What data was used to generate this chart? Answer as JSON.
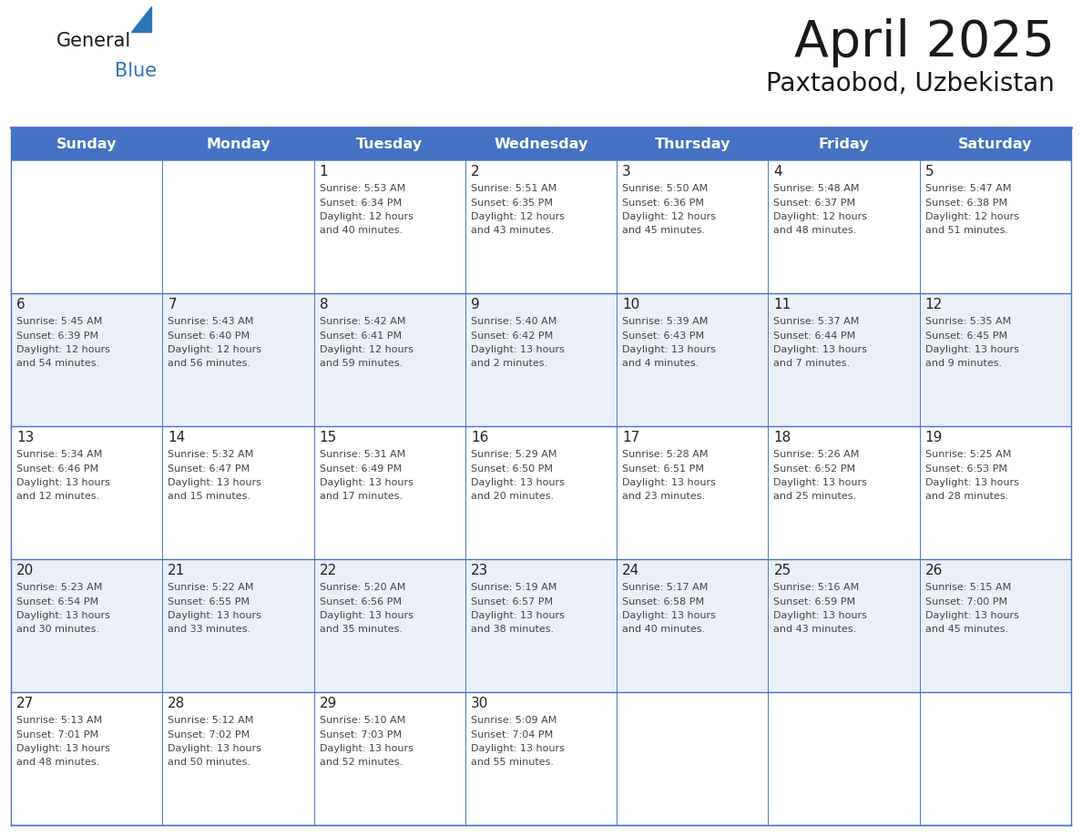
{
  "title": "April 2025",
  "subtitle": "Paxtaobod, Uzbekistan",
  "header_bg_color": "#4472C4",
  "header_text_color": "#FFFFFF",
  "border_color": "#4472C4",
  "title_color": "#1a1a1a",
  "subtitle_color": "#1a1a1a",
  "day_number_color": "#222222",
  "cell_text_color": "#444444",
  "days_of_week": [
    "Sunday",
    "Monday",
    "Tuesday",
    "Wednesday",
    "Thursday",
    "Friday",
    "Saturday"
  ],
  "row_bg_colors": [
    "#FFFFFF",
    "#EBF0F8"
  ],
  "calendar_data": [
    [
      {
        "day": "",
        "sunrise": "",
        "sunset": "",
        "daylight": ""
      },
      {
        "day": "",
        "sunrise": "",
        "sunset": "",
        "daylight": ""
      },
      {
        "day": "1",
        "sunrise": "5:53 AM",
        "sunset": "6:34 PM",
        "daylight_h": "12 hours",
        "daylight_m": "and 40 minutes."
      },
      {
        "day": "2",
        "sunrise": "5:51 AM",
        "sunset": "6:35 PM",
        "daylight_h": "12 hours",
        "daylight_m": "and 43 minutes."
      },
      {
        "day": "3",
        "sunrise": "5:50 AM",
        "sunset": "6:36 PM",
        "daylight_h": "12 hours",
        "daylight_m": "and 45 minutes."
      },
      {
        "day": "4",
        "sunrise": "5:48 AM",
        "sunset": "6:37 PM",
        "daylight_h": "12 hours",
        "daylight_m": "and 48 minutes."
      },
      {
        "day": "5",
        "sunrise": "5:47 AM",
        "sunset": "6:38 PM",
        "daylight_h": "12 hours",
        "daylight_m": "and 51 minutes."
      }
    ],
    [
      {
        "day": "6",
        "sunrise": "5:45 AM",
        "sunset": "6:39 PM",
        "daylight_h": "12 hours",
        "daylight_m": "and 54 minutes."
      },
      {
        "day": "7",
        "sunrise": "5:43 AM",
        "sunset": "6:40 PM",
        "daylight_h": "12 hours",
        "daylight_m": "and 56 minutes."
      },
      {
        "day": "8",
        "sunrise": "5:42 AM",
        "sunset": "6:41 PM",
        "daylight_h": "12 hours",
        "daylight_m": "and 59 minutes."
      },
      {
        "day": "9",
        "sunrise": "5:40 AM",
        "sunset": "6:42 PM",
        "daylight_h": "13 hours",
        "daylight_m": "and 2 minutes."
      },
      {
        "day": "10",
        "sunrise": "5:39 AM",
        "sunset": "6:43 PM",
        "daylight_h": "13 hours",
        "daylight_m": "and 4 minutes."
      },
      {
        "day": "11",
        "sunrise": "5:37 AM",
        "sunset": "6:44 PM",
        "daylight_h": "13 hours",
        "daylight_m": "and 7 minutes."
      },
      {
        "day": "12",
        "sunrise": "5:35 AM",
        "sunset": "6:45 PM",
        "daylight_h": "13 hours",
        "daylight_m": "and 9 minutes."
      }
    ],
    [
      {
        "day": "13",
        "sunrise": "5:34 AM",
        "sunset": "6:46 PM",
        "daylight_h": "13 hours",
        "daylight_m": "and 12 minutes."
      },
      {
        "day": "14",
        "sunrise": "5:32 AM",
        "sunset": "6:47 PM",
        "daylight_h": "13 hours",
        "daylight_m": "and 15 minutes."
      },
      {
        "day": "15",
        "sunrise": "5:31 AM",
        "sunset": "6:49 PM",
        "daylight_h": "13 hours",
        "daylight_m": "and 17 minutes."
      },
      {
        "day": "16",
        "sunrise": "5:29 AM",
        "sunset": "6:50 PM",
        "daylight_h": "13 hours",
        "daylight_m": "and 20 minutes."
      },
      {
        "day": "17",
        "sunrise": "5:28 AM",
        "sunset": "6:51 PM",
        "daylight_h": "13 hours",
        "daylight_m": "and 23 minutes."
      },
      {
        "day": "18",
        "sunrise": "5:26 AM",
        "sunset": "6:52 PM",
        "daylight_h": "13 hours",
        "daylight_m": "and 25 minutes."
      },
      {
        "day": "19",
        "sunrise": "5:25 AM",
        "sunset": "6:53 PM",
        "daylight_h": "13 hours",
        "daylight_m": "and 28 minutes."
      }
    ],
    [
      {
        "day": "20",
        "sunrise": "5:23 AM",
        "sunset": "6:54 PM",
        "daylight_h": "13 hours",
        "daylight_m": "and 30 minutes."
      },
      {
        "day": "21",
        "sunrise": "5:22 AM",
        "sunset": "6:55 PM",
        "daylight_h": "13 hours",
        "daylight_m": "and 33 minutes."
      },
      {
        "day": "22",
        "sunrise": "5:20 AM",
        "sunset": "6:56 PM",
        "daylight_h": "13 hours",
        "daylight_m": "and 35 minutes."
      },
      {
        "day": "23",
        "sunrise": "5:19 AM",
        "sunset": "6:57 PM",
        "daylight_h": "13 hours",
        "daylight_m": "and 38 minutes."
      },
      {
        "day": "24",
        "sunrise": "5:17 AM",
        "sunset": "6:58 PM",
        "daylight_h": "13 hours",
        "daylight_m": "and 40 minutes."
      },
      {
        "day": "25",
        "sunrise": "5:16 AM",
        "sunset": "6:59 PM",
        "daylight_h": "13 hours",
        "daylight_m": "and 43 minutes."
      },
      {
        "day": "26",
        "sunrise": "5:15 AM",
        "sunset": "7:00 PM",
        "daylight_h": "13 hours",
        "daylight_m": "and 45 minutes."
      }
    ],
    [
      {
        "day": "27",
        "sunrise": "5:13 AM",
        "sunset": "7:01 PM",
        "daylight_h": "13 hours",
        "daylight_m": "and 48 minutes."
      },
      {
        "day": "28",
        "sunrise": "5:12 AM",
        "sunset": "7:02 PM",
        "daylight_h": "13 hours",
        "daylight_m": "and 50 minutes."
      },
      {
        "day": "29",
        "sunrise": "5:10 AM",
        "sunset": "7:03 PM",
        "daylight_h": "13 hours",
        "daylight_m": "and 52 minutes."
      },
      {
        "day": "30",
        "sunrise": "5:09 AM",
        "sunset": "7:04 PM",
        "daylight_h": "13 hours",
        "daylight_m": "and 55 minutes."
      },
      {
        "day": "",
        "sunrise": "",
        "sunset": "",
        "daylight_h": "",
        "daylight_m": ""
      },
      {
        "day": "",
        "sunrise": "",
        "sunset": "",
        "daylight_h": "",
        "daylight_m": ""
      },
      {
        "day": "",
        "sunrise": "",
        "sunset": "",
        "daylight_h": "",
        "daylight_m": ""
      }
    ]
  ]
}
